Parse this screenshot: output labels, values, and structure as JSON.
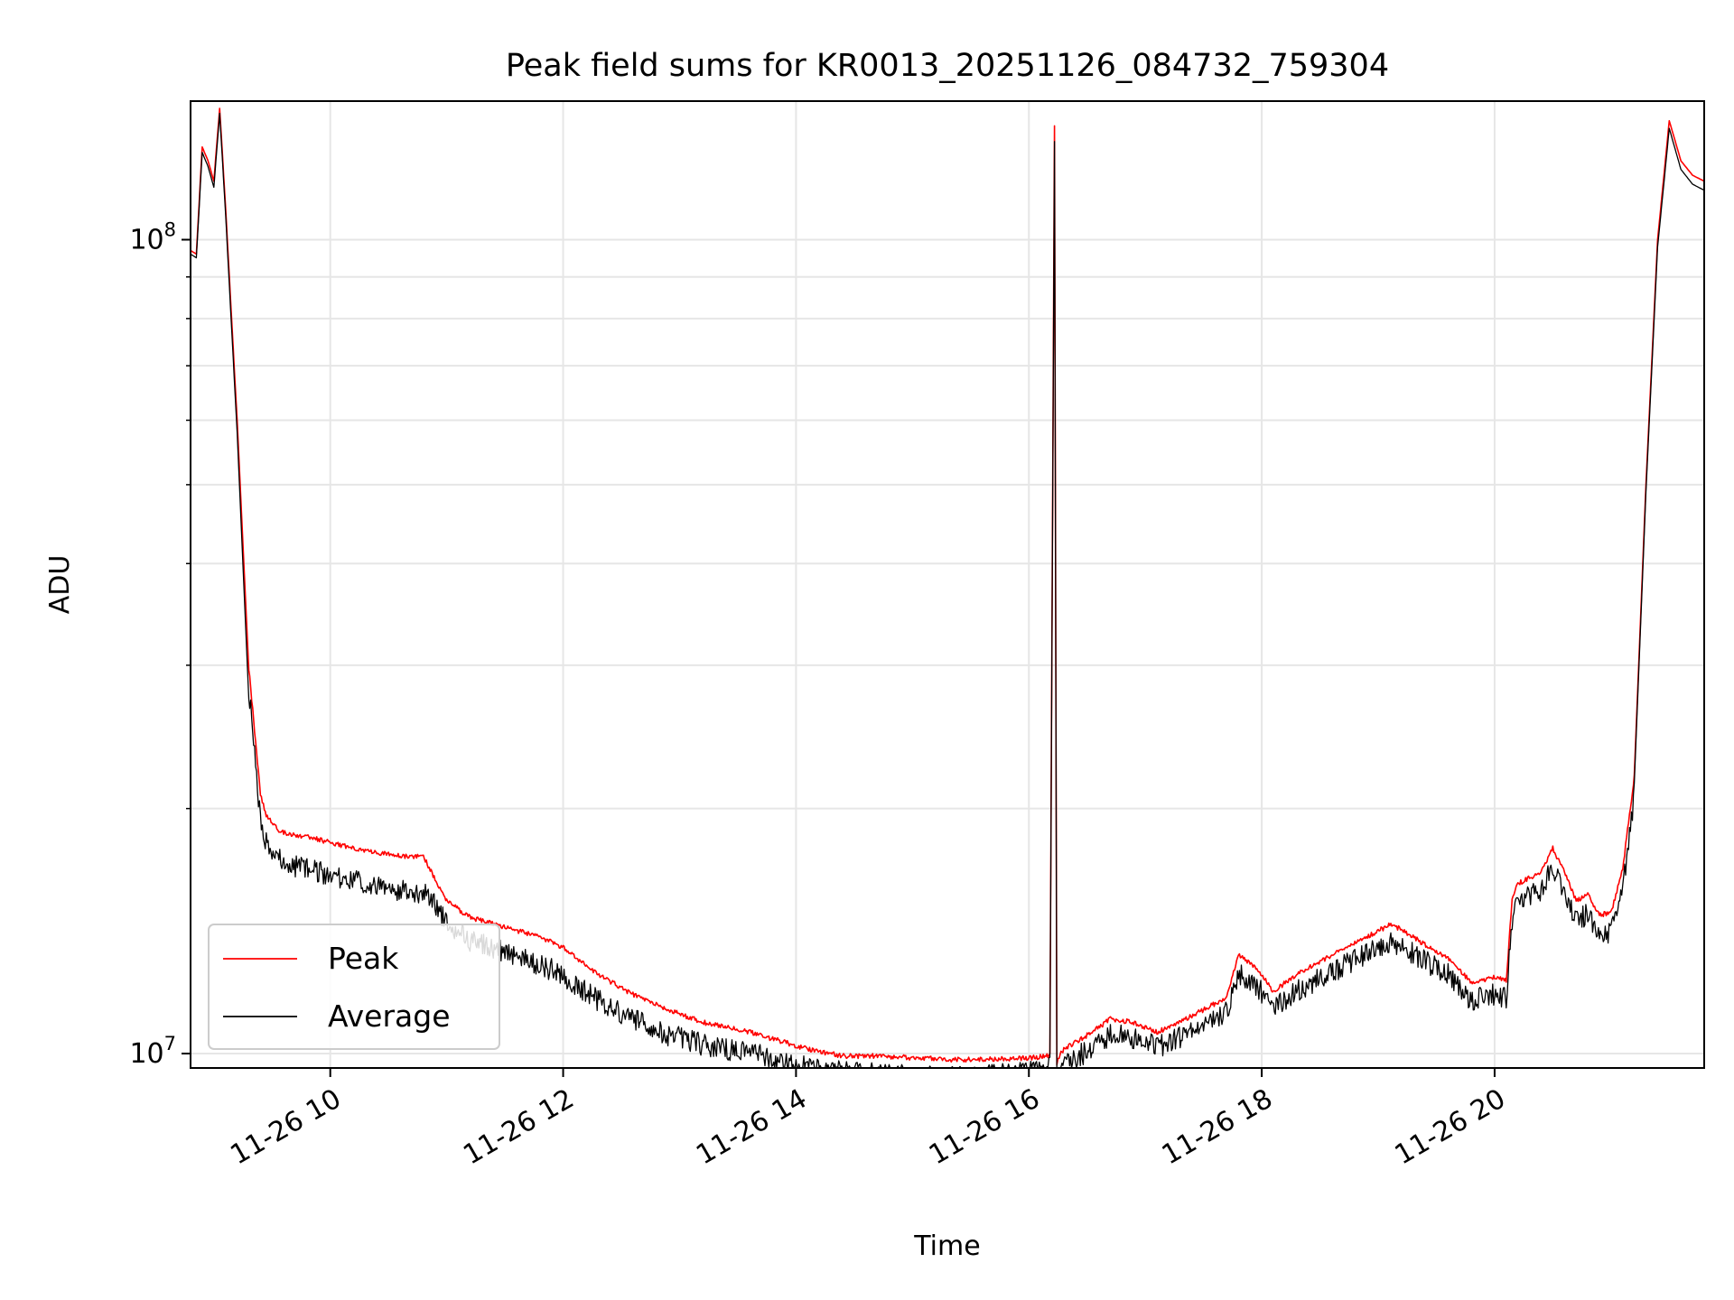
{
  "chart_data": {
    "type": "line",
    "title": "Peak field sums for KR0013_20251126_084732_759304",
    "xlabel": "Time",
    "ylabel": "ADU",
    "x_unit": "hours on 2025-11-26",
    "xlim": [
      8.8,
      21.8
    ],
    "ylim": [
      9600000,
      148000000
    ],
    "yscale": "log",
    "grid": true,
    "legend": "lower-left",
    "x_ticks": [
      {
        "value": 10,
        "label": "11-26 10"
      },
      {
        "value": 12,
        "label": "11-26 12"
      },
      {
        "value": 14,
        "label": "11-26 14"
      },
      {
        "value": 16,
        "label": "11-26 16"
      },
      {
        "value": 18,
        "label": "11-26 18"
      },
      {
        "value": 20,
        "label": "11-26 20"
      }
    ],
    "y_ticks": [
      {
        "value": 10000000,
        "base": "10",
        "exp": "7"
      },
      {
        "value": 100000000,
        "base": "10",
        "exp": "8"
      }
    ],
    "series": [
      {
        "name": "Peak",
        "color": "#ff0000",
        "x": [
          8.8,
          8.85,
          8.9,
          8.95,
          9.0,
          9.05,
          9.1,
          9.2,
          9.3,
          9.4,
          9.45,
          9.5,
          9.55,
          9.6,
          9.8,
          10.0,
          10.2,
          10.4,
          10.6,
          10.8,
          10.9,
          11.0,
          11.2,
          11.5,
          11.8,
          12.0,
          12.3,
          12.6,
          12.9,
          13.2,
          13.5,
          13.8,
          14.1,
          14.4,
          14.7,
          15.0,
          15.3,
          15.6,
          16.0,
          16.18,
          16.22,
          16.24,
          16.26,
          16.3,
          16.5,
          16.7,
          16.9,
          17.1,
          17.3,
          17.5,
          17.7,
          17.8,
          17.9,
          18.0,
          18.1,
          18.3,
          18.6,
          18.9,
          19.1,
          19.2,
          19.4,
          19.6,
          19.8,
          20.0,
          20.1,
          20.15,
          20.2,
          20.4,
          20.5,
          20.6,
          20.7,
          20.8,
          20.9,
          21.0,
          21.1,
          21.2,
          21.3,
          21.4,
          21.5,
          21.6,
          21.7,
          21.8
        ],
        "y": [
          97000000,
          96000000,
          130000000,
          125000000,
          118000000,
          145000000,
          110000000,
          60000000,
          30000000,
          21000000,
          19800000,
          19400000,
          19000000,
          18800000,
          18600000,
          18300000,
          18000000,
          17800000,
          17600000,
          17600000,
          16500000,
          15500000,
          14800000,
          14400000,
          14000000,
          13600000,
          12600000,
          11900000,
          11400000,
          11000000,
          10800000,
          10500000,
          10200000,
          10000000,
          10000000,
          9950000,
          9900000,
          9900000,
          9950000,
          10000000,
          138000000,
          9800000,
          10000000,
          10200000,
          10600000,
          11100000,
          11000000,
          10700000,
          11000000,
          11400000,
          11800000,
          13300000,
          13000000,
          12600000,
          12000000,
          12600000,
          13300000,
          14000000,
          14500000,
          14300000,
          13700000,
          13200000,
          12300000,
          12500000,
          12400000,
          15500000,
          16300000,
          16800000,
          18000000,
          16800000,
          15500000,
          15800000,
          14900000,
          15000000,
          17000000,
          22000000,
          50000000,
          100000000,
          140000000,
          125000000,
          120000000,
          118000000
        ]
      },
      {
        "name": "Average",
        "color": "#000000",
        "x": [
          8.8,
          8.85,
          8.9,
          8.95,
          9.0,
          9.05,
          9.1,
          9.2,
          9.3,
          9.4,
          9.45,
          9.5,
          9.55,
          9.6,
          9.8,
          10.0,
          10.2,
          10.4,
          10.6,
          10.8,
          10.9,
          11.0,
          11.2,
          11.5,
          11.8,
          12.0,
          12.3,
          12.6,
          12.9,
          13.2,
          13.5,
          13.8,
          14.1,
          14.4,
          14.7,
          15.0,
          15.3,
          15.6,
          16.0,
          16.18,
          16.22,
          16.24,
          16.26,
          16.3,
          16.5,
          16.7,
          16.9,
          17.1,
          17.3,
          17.5,
          17.7,
          17.8,
          17.9,
          18.0,
          18.1,
          18.3,
          18.6,
          18.9,
          19.1,
          19.2,
          19.4,
          19.6,
          19.8,
          20.0,
          20.1,
          20.15,
          20.2,
          20.4,
          20.5,
          20.6,
          20.7,
          20.8,
          20.9,
          21.0,
          21.1,
          21.2,
          21.3,
          21.4,
          21.5,
          21.6,
          21.7,
          21.8
        ],
        "y": [
          96000000,
          95000000,
          128000000,
          123000000,
          116000000,
          143000000,
          108000000,
          58000000,
          29000000,
          20000000,
          18800000,
          18300000,
          17900000,
          17700000,
          17400000,
          17100000,
          16800000,
          16600000,
          16400000,
          16300000,
          15800000,
          14900000,
          14200000,
          13800000,
          13300000,
          12900000,
          12000000,
          11400000,
          10900000,
          10600000,
          10400000,
          10200000,
          9900000,
          9800000,
          9750000,
          9700000,
          9700000,
          9700000,
          9800000,
          9900000,
          132000000,
          9600000,
          9800000,
          10000000,
          10400000,
          10900000,
          10800000,
          10500000,
          10800000,
          11200000,
          11600000,
          13000000,
          12700000,
          12300000,
          11700000,
          12300000,
          13000000,
          13700000,
          14200000,
          14000000,
          13400000,
          12900000,
          12000000,
          12200000,
          12100000,
          15100000,
          15900000,
          16400000,
          17500000,
          16300000,
          15100000,
          15300000,
          14500000,
          14600000,
          16500000,
          21500000,
          49000000,
          98000000,
          137000000,
          122000000,
          117000000,
          115000000
        ]
      }
    ]
  }
}
